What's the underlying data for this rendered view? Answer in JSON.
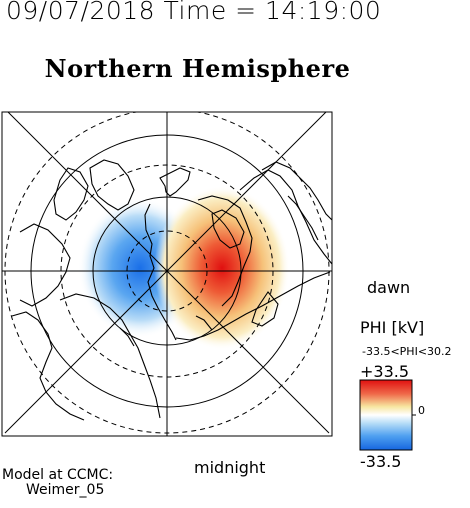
{
  "header": {
    "datetime": "09/07/2018 Time = 14:19:00"
  },
  "title": "Northern Hemisphere",
  "map": {
    "direction_labels": {
      "right": "dawn",
      "bottom": "midnight"
    },
    "model_label_line1": "Model at CCMC:",
    "model_label_line2": "Weimer_05"
  },
  "colorbar": {
    "title": "PHI [kV]",
    "range_text": "-33.5<PHI<30.2",
    "max_label": "+33.5",
    "zero_label": "0",
    "min_label": "-33.5",
    "colors": {
      "negative": "#1e78e6",
      "zero": "#ffffff",
      "positive": "#e01a1a",
      "mid_positive": "#f5e08a"
    }
  }
}
